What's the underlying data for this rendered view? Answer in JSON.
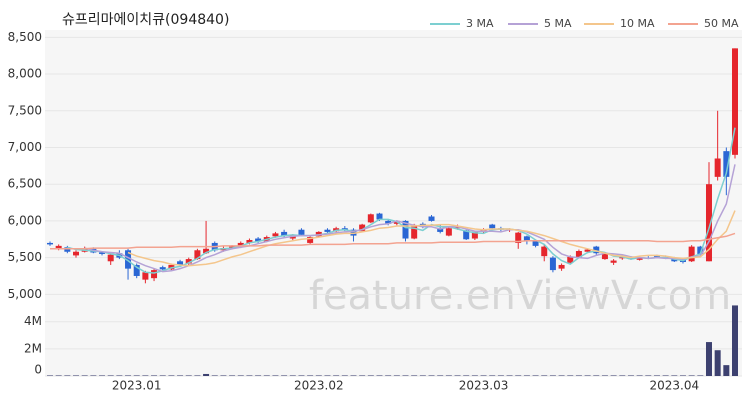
{
  "chart_data": {
    "type": "candlestick",
    "title": "슈프리마에이치큐(094840)",
    "watermark": "feature.enViewV.com",
    "categories": [
      null,
      null,
      null,
      null,
      null,
      null,
      null,
      null,
      null,
      null,
      "2023.01",
      null,
      null,
      null,
      null,
      null,
      null,
      null,
      null,
      null,
      null,
      null,
      null,
      null,
      null,
      null,
      null,
      null,
      null,
      null,
      null,
      "2023.02",
      null,
      null,
      null,
      null,
      null,
      null,
      null,
      null,
      null,
      null,
      null,
      null,
      null,
      null,
      null,
      null,
      null,
      null,
      "2023.03",
      null,
      null,
      null,
      null,
      null,
      null,
      null,
      null,
      null,
      null,
      null,
      null,
      null,
      null,
      null,
      null,
      null,
      null,
      null,
      null,
      null,
      "2023.04",
      null,
      null,
      null,
      null,
      null,
      null,
      null
    ],
    "open": [
      5700,
      5620,
      5640,
      5530,
      5580,
      5620,
      5570,
      5450,
      5560,
      5600,
      5400,
      5200,
      5220,
      5370,
      5340,
      5450,
      5420,
      5480,
      5560,
      5700,
      5600,
      5630,
      5650,
      5700,
      5760,
      5720,
      5790,
      5850,
      5760,
      5880,
      5700,
      5790,
      5880,
      5860,
      5900,
      5880,
      5860,
      5980,
      6100,
      6000,
      5960,
      6000,
      5760,
      5960,
      6060,
      5900,
      5800,
      5900,
      5870,
      5760,
      5850,
      5950,
      5900,
      5880,
      5700,
      5790,
      5720,
      5520,
      5500,
      5350,
      5430,
      5500,
      5580,
      5650,
      5480,
      5430,
      5490,
      5500,
      5470,
      5500,
      5520,
      5510,
      5500,
      5470,
      5450,
      5650,
      5450,
      6600,
      6950,
      6900
    ],
    "high": [
      5720,
      5680,
      5660,
      5600,
      5650,
      5640,
      5590,
      5560,
      5600,
      5620,
      5420,
      5320,
      5350,
      5390,
      5420,
      5470,
      5500,
      5620,
      6000,
      5720,
      5650,
      5670,
      5720,
      5760,
      5780,
      5800,
      5850,
      5880,
      5820,
      5900,
      5790,
      5860,
      5900,
      5920,
      5930,
      5900,
      5960,
      6100,
      6110,
      6020,
      6010,
      6010,
      5960,
      5980,
      6080,
      5950,
      5920,
      5950,
      5880,
      5860,
      5900,
      5960,
      5920,
      5900,
      5850,
      5800,
      5740,
      5680,
      5520,
      5420,
      5530,
      5610,
      5620,
      5660,
      5560,
      5480,
      5530,
      5520,
      5510,
      5520,
      5540,
      5530,
      5510,
      5480,
      5670,
      5660,
      6800,
      7500,
      7000,
      8350
    ],
    "low": [
      5660,
      5600,
      5560,
      5500,
      5570,
      5560,
      5530,
      5400,
      5480,
      5200,
      5220,
      5150,
      5180,
      5330,
      5330,
      5380,
      5400,
      5470,
      5550,
      5580,
      5580,
      5610,
      5630,
      5680,
      5700,
      5710,
      5770,
      5780,
      5740,
      5790,
      5680,
      5780,
      5830,
      5850,
      5860,
      5720,
      5850,
      5970,
      6000,
      5940,
      5940,
      5720,
      5750,
      5900,
      5990,
      5830,
      5790,
      5880,
      5740,
      5740,
      5830,
      5880,
      5860,
      5850,
      5620,
      5680,
      5640,
      5450,
      5300,
      5320,
      5420,
      5490,
      5560,
      5540,
      5470,
      5400,
      5470,
      5470,
      5460,
      5480,
      5490,
      5480,
      5440,
      5420,
      5440,
      5520,
      5450,
      6550,
      6350,
      6850
    ],
    "close": [
      5680,
      5660,
      5580,
      5580,
      5630,
      5570,
      5550,
      5540,
      5500,
      5350,
      5250,
      5300,
      5330,
      5340,
      5400,
      5400,
      5480,
      5600,
      5620,
      5600,
      5630,
      5650,
      5700,
      5740,
      5720,
      5780,
      5830,
      5800,
      5800,
      5810,
      5780,
      5850,
      5850,
      5900,
      5880,
      5800,
      5950,
      6090,
      6020,
      5960,
      6000,
      5760,
      5940,
      5920,
      6000,
      5850,
      5900,
      5930,
      5750,
      5850,
      5880,
      5900,
      5880,
      5890,
      5840,
      5720,
      5660,
      5650,
      5330,
      5400,
      5510,
      5590,
      5610,
      5560,
      5550,
      5460,
      5510,
      5480,
      5500,
      5490,
      5500,
      5500,
      5450,
      5440,
      5650,
      5550,
      6500,
      6850,
      6600,
      8350
    ],
    "up_color": "#e5262d",
    "down_color": "#2a66d4",
    "series": [
      {
        "name": "3 MA",
        "color": "#7ccfd1",
        "values": [
          null,
          null,
          5640,
          5610,
          5600,
          5590,
          5580,
          5550,
          5530,
          5460,
          5370,
          5300,
          5290,
          5320,
          5360,
          5380,
          5430,
          5490,
          5570,
          5610,
          5620,
          5630,
          5660,
          5700,
          5720,
          5750,
          5780,
          5800,
          5810,
          5800,
          5800,
          5810,
          5830,
          5870,
          5880,
          5860,
          5880,
          5950,
          6020,
          6020,
          5990,
          5910,
          5900,
          5870,
          5950,
          5920,
          5920,
          5890,
          5860,
          5840,
          5830,
          5880,
          5890,
          5890,
          5870,
          5820,
          5740,
          5680,
          5550,
          5460,
          5410,
          5500,
          5570,
          5590,
          5570,
          5520,
          5510,
          5480,
          5500,
          5490,
          5500,
          5500,
          5480,
          5460,
          5510,
          5550,
          5900,
          6300,
          6650,
          7270
        ]
      },
      {
        "name": "5 MA",
        "color": "#b5a2d6",
        "values": [
          null,
          null,
          null,
          null,
          5630,
          5600,
          5580,
          5570,
          5560,
          5500,
          5440,
          5390,
          5350,
          5310,
          5320,
          5350,
          5390,
          5440,
          5500,
          5540,
          5590,
          5620,
          5640,
          5660,
          5690,
          5720,
          5750,
          5770,
          5790,
          5800,
          5800,
          5810,
          5820,
          5840,
          5850,
          5860,
          5880,
          5920,
          5950,
          5960,
          6000,
          5970,
          5940,
          5920,
          5920,
          5890,
          5920,
          5920,
          5890,
          5860,
          5860,
          5860,
          5850,
          5880,
          5880,
          5850,
          5800,
          5750,
          5640,
          5550,
          5510,
          5500,
          5490,
          5530,
          5560,
          5550,
          5540,
          5510,
          5500,
          5490,
          5500,
          5490,
          5490,
          5480,
          5510,
          5520,
          5720,
          6000,
          6230,
          6770
        ]
      },
      {
        "name": "10 MA",
        "color": "#f4c68c",
        "values": [
          null,
          null,
          null,
          null,
          null,
          null,
          null,
          null,
          null,
          5570,
          5520,
          5490,
          5460,
          5440,
          5410,
          5400,
          5390,
          5400,
          5410,
          5430,
          5470,
          5510,
          5540,
          5580,
          5620,
          5660,
          5690,
          5710,
          5730,
          5750,
          5760,
          5780,
          5800,
          5820,
          5830,
          5830,
          5850,
          5870,
          5900,
          5910,
          5930,
          5930,
          5930,
          5940,
          5940,
          5950,
          5950,
          5930,
          5910,
          5890,
          5880,
          5890,
          5890,
          5890,
          5870,
          5860,
          5830,
          5800,
          5760,
          5720,
          5680,
          5650,
          5620,
          5590,
          5560,
          5530,
          5520,
          5500,
          5520,
          5530,
          5530,
          5520,
          5500,
          5490,
          5500,
          5510,
          5610,
          5750,
          5860,
          6140
        ]
      },
      {
        "name": "50 MA",
        "color": "#f3a390",
        "values": [
          5620,
          5620,
          5620,
          5620,
          5620,
          5630,
          5630,
          5630,
          5630,
          5630,
          5640,
          5640,
          5640,
          5640,
          5640,
          5650,
          5650,
          5650,
          5650,
          5650,
          5660,
          5660,
          5660,
          5660,
          5660,
          5670,
          5670,
          5670,
          5670,
          5670,
          5680,
          5680,
          5680,
          5680,
          5680,
          5690,
          5690,
          5690,
          5690,
          5690,
          5700,
          5700,
          5700,
          5700,
          5700,
          5710,
          5710,
          5710,
          5710,
          5710,
          5720,
          5720,
          5720,
          5720,
          5720,
          5730,
          5730,
          5730,
          5730,
          5730,
          5730,
          5730,
          5730,
          5730,
          5730,
          5730,
          5730,
          5730,
          5730,
          5730,
          5720,
          5720,
          5720,
          5720,
          5730,
          5730,
          5750,
          5770,
          5790,
          5830
        ]
      }
    ],
    "ylim": [
      4950,
      8600
    ],
    "yticks": [
      {
        "value": 5000,
        "label": "5,000"
      },
      {
        "value": 5500,
        "label": "5,500"
      },
      {
        "value": 6000,
        "label": "6,000"
      },
      {
        "value": 6500,
        "label": "6,500"
      },
      {
        "value": 7000,
        "label": "7,000"
      },
      {
        "value": 7500,
        "label": "7,500"
      },
      {
        "value": 8000,
        "label": "8,000"
      },
      {
        "value": 8500,
        "label": "8,500"
      }
    ],
    "grid": true,
    "legend": "top-right",
    "volume": {
      "color": "#3d4170",
      "values": [
        40000,
        40000,
        40000,
        40000,
        40000,
        40000,
        40000,
        40000,
        40000,
        40000,
        40000,
        40000,
        40000,
        40000,
        40000,
        40000,
        40000,
        40000,
        150000,
        40000,
        40000,
        40000,
        40000,
        40000,
        40000,
        40000,
        40000,
        40000,
        40000,
        40000,
        40000,
        40000,
        40000,
        40000,
        40000,
        40000,
        40000,
        40000,
        40000,
        40000,
        40000,
        40000,
        40000,
        40000,
        40000,
        40000,
        40000,
        40000,
        40000,
        40000,
        40000,
        40000,
        40000,
        40000,
        40000,
        40000,
        40000,
        40000,
        40000,
        40000,
        40000,
        40000,
        40000,
        40000,
        40000,
        40000,
        40000,
        40000,
        40000,
        40000,
        40000,
        40000,
        40000,
        40000,
        40000,
        40000,
        2500000,
        1900000,
        800000,
        5200000
      ],
      "ylim": [
        0,
        5600000
      ],
      "yticks": [
        0,
        {
          "value": 2000000,
          "label": "2M"
        },
        {
          "value": 4000000,
          "label": "4M"
        }
      ]
    }
  }
}
